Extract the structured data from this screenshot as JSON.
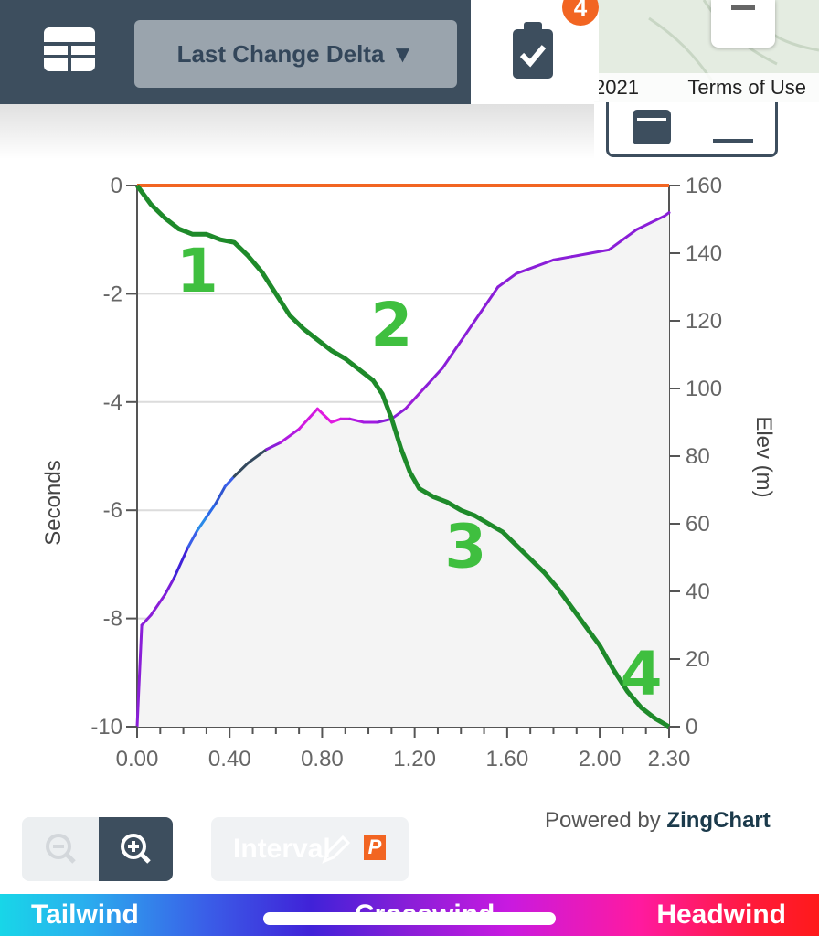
{
  "map": {
    "copyright_fragment": "2021",
    "terms_label": "Terms of Use"
  },
  "header": {
    "metric_dropdown": "Last Change Delta ▼",
    "badge_count": "4"
  },
  "controls": {
    "interval_label": "Interval",
    "interval_badge": "P"
  },
  "branding": {
    "powered_prefix": "Powered by",
    "powered_brand": "ZingChart"
  },
  "wind_legend": {
    "left": "Tailwind",
    "center": "Crosswind",
    "right": "Headwind"
  },
  "colors": {
    "header": "#3d4e5e",
    "delta_line": "#1e8a2a",
    "reference_line": "#f26522",
    "elevation_fill": "#f4f4f4",
    "annotation": "#3fbf3f"
  },
  "chart_data": {
    "type": "line",
    "xlabel": "",
    "ylabel": "Seconds",
    "y2label": "Elev (m)",
    "xlim": [
      0,
      2.3
    ],
    "ylim": [
      -10,
      0
    ],
    "y2lim": [
      0,
      160
    ],
    "x_ticks": [
      "0.00",
      "0.40",
      "0.80",
      "1.20",
      "1.60",
      "2.00",
      "2.30"
    ],
    "x_tick_values": [
      0,
      0.4,
      0.8,
      1.2,
      1.6,
      2.0,
      2.3
    ],
    "y_ticks": [
      "0",
      "-2",
      "-4",
      "-6",
      "-8",
      "-10"
    ],
    "y_tick_values": [
      0,
      -2,
      -4,
      -6,
      -8,
      -10
    ],
    "y2_ticks": [
      "160",
      "140",
      "120",
      "100",
      "80",
      "60",
      "40",
      "20",
      "0"
    ],
    "y2_tick_values": [
      160,
      140,
      120,
      100,
      80,
      60,
      40,
      20,
      0
    ],
    "series": [
      {
        "role": "reference",
        "x": [
          0,
          2.3
        ],
        "y": [
          0,
          0
        ]
      },
      {
        "role": "delta",
        "x": [
          0,
          0.06,
          0.12,
          0.18,
          0.24,
          0.3,
          0.36,
          0.42,
          0.48,
          0.54,
          0.6,
          0.66,
          0.72,
          0.78,
          0.84,
          0.9,
          0.96,
          1.02,
          1.06,
          1.1,
          1.14,
          1.18,
          1.22,
          1.28,
          1.34,
          1.4,
          1.46,
          1.52,
          1.58,
          1.64,
          1.7,
          1.76,
          1.82,
          1.88,
          1.94,
          2.0,
          2.06,
          2.12,
          2.18,
          2.24,
          2.3
        ],
        "y": [
          0,
          -0.35,
          -0.6,
          -0.8,
          -0.9,
          -0.9,
          -1.0,
          -1.05,
          -1.3,
          -1.6,
          -2.0,
          -2.4,
          -2.65,
          -2.85,
          -3.05,
          -3.2,
          -3.4,
          -3.6,
          -3.85,
          -4.3,
          -4.85,
          -5.3,
          -5.6,
          -5.75,
          -5.85,
          -6.0,
          -6.1,
          -6.25,
          -6.4,
          -6.65,
          -6.9,
          -7.15,
          -7.45,
          -7.8,
          -8.15,
          -8.5,
          -8.95,
          -9.35,
          -9.65,
          -9.85,
          -10.0
        ]
      },
      {
        "role": "elevation",
        "x": [
          0,
          0.02,
          0.06,
          0.12,
          0.16,
          0.22,
          0.26,
          0.3,
          0.34,
          0.38,
          0.42,
          0.48,
          0.56,
          0.62,
          0.7,
          0.78,
          0.84,
          0.88,
          0.92,
          0.98,
          1.04,
          1.1,
          1.16,
          1.24,
          1.32,
          1.4,
          1.48,
          1.56,
          1.64,
          1.72,
          1.8,
          1.88,
          1.96,
          2.04,
          2.1,
          2.16,
          2.22,
          2.28,
          2.3
        ],
        "y": [
          0,
          30,
          33,
          39,
          44,
          53,
          58,
          62,
          66,
          71,
          74,
          78,
          82,
          84,
          88,
          94,
          90,
          91,
          91,
          90,
          90,
          91,
          94,
          100,
          106,
          114,
          122,
          130,
          134,
          136,
          138,
          139,
          140,
          141,
          144,
          147,
          149,
          151,
          152
        ],
        "colors": [
          "#8a1ed8",
          "#8a1ed8",
          "#8a1ed8",
          "#7a1ed8",
          "#4022d8",
          "#3a5fe8",
          "#2a8ae8",
          "#2a6ae8",
          "#2f55d0",
          "#3a5fe8",
          "#34495e",
          "#34495e",
          "#8a1ed8",
          "#b01ae0",
          "#d01ae0",
          "#e01ae0",
          "#e01ae0",
          "#c81ae0",
          "#b01ae0",
          "#a01ae0",
          "#8a1ed8",
          "#8a1ed8",
          "#9a1ed8",
          "#8a1ed8",
          "#8a1ed8",
          "#8a1ed8",
          "#8a1ed8",
          "#8a1ed8",
          "#8a1ed8",
          "#8a1ed8",
          "#8a1ed8",
          "#8a1ed8",
          "#8a1ed8",
          "#8a1ed8",
          "#8a1ed8",
          "#8a1ed8",
          "#8a1ed8",
          "#8a1ed8"
        ]
      }
    ],
    "annotations": [
      {
        "text": "1",
        "x": 0.26,
        "y": -1.55
      },
      {
        "text": "2",
        "x": 1.1,
        "y": -2.55
      },
      {
        "text": "3",
        "x": 1.42,
        "y": -6.65
      },
      {
        "text": "4",
        "x": 2.18,
        "y": -9.0
      }
    ]
  }
}
